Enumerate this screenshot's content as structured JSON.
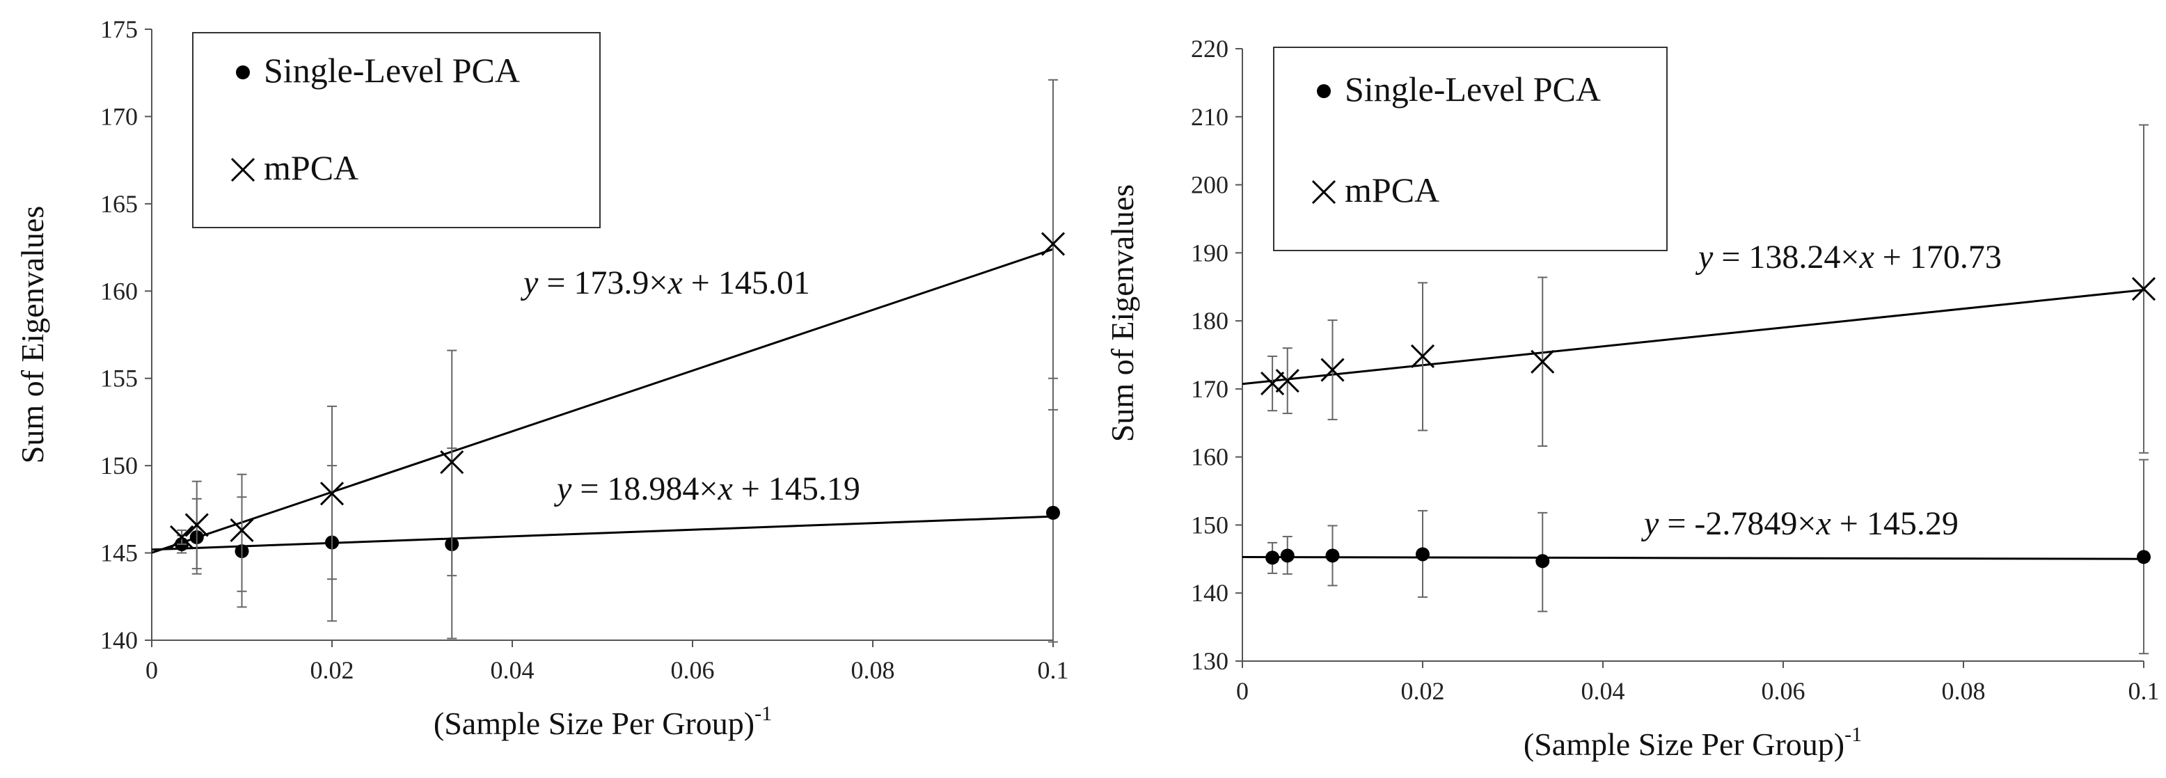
{
  "chart_data": [
    {
      "type": "scatter",
      "title": "",
      "xlabel": "(Sample Size Per Group)",
      "xlabel_superscript": "-1",
      "ylabel": "Sum of Eigenvalues",
      "xlim": [
        0,
        0.1
      ],
      "ylim": [
        140,
        175
      ],
      "xticks": [
        0,
        0.02,
        0.04,
        0.06,
        0.08,
        0.1
      ],
      "xtick_labels": [
        "0",
        "0.02",
        "0.04",
        "0.06",
        "0.08",
        "0.1"
      ],
      "yticks": [
        140,
        145,
        150,
        155,
        160,
        165,
        170,
        175
      ],
      "legend": {
        "position": "top-left",
        "entries": [
          "Single-Level PCA",
          "mPCA"
        ]
      },
      "series": [
        {
          "name": "Single-Level PCA",
          "marker": "circle",
          "x": [
            0.00333,
            0.005,
            0.01,
            0.02,
            0.0333,
            0.1
          ],
          "y": [
            145.5,
            145.9,
            145.1,
            145.6,
            145.5,
            147.3
          ],
          "err_low": [
            145.0,
            143.8,
            141.9,
            141.1,
            140.1,
            139.9
          ],
          "err_high": [
            146.0,
            148.1,
            148.2,
            150.0,
            151.0,
            155.0
          ],
          "fit": {
            "slope": 18.984,
            "intercept": 145.19,
            "equation": {
              "y": "y",
              "op1": " = 18.984×",
              "x": "x",
              "op2": " + 145.19"
            }
          }
        },
        {
          "name": "mPCA",
          "marker": "x",
          "x": [
            0.00333,
            0.005,
            0.01,
            0.02,
            0.0333,
            0.1
          ],
          "y": [
            145.9,
            146.6,
            146.3,
            148.4,
            150.2,
            162.7
          ],
          "err_low": [
            145.5,
            144.1,
            142.8,
            143.5,
            143.7,
            153.2
          ],
          "err_high": [
            146.3,
            149.1,
            149.5,
            153.4,
            156.6,
            172.1
          ],
          "fit": {
            "slope": 173.9,
            "intercept": 145.01,
            "equation": {
              "y": "y",
              "op1": " = 173.9×",
              "x": "x",
              "op2": " + 145.01"
            }
          }
        }
      ]
    },
    {
      "type": "scatter",
      "title": "",
      "xlabel": "(Sample Size Per Group)",
      "xlabel_superscript": "-1",
      "ylabel": "Sum of Eigenvalues",
      "xlim": [
        0,
        0.1
      ],
      "ylim": [
        130,
        220
      ],
      "xticks": [
        0,
        0.02,
        0.04,
        0.06,
        0.08,
        0.1
      ],
      "xtick_labels": [
        "0",
        "0.02",
        "0.04",
        "0.06",
        "0.08",
        "0.1"
      ],
      "yticks": [
        130,
        140,
        150,
        160,
        170,
        180,
        190,
        200,
        210,
        220
      ],
      "legend": {
        "position": "top-left",
        "entries": [
          "Single-Level PCA",
          "mPCA"
        ]
      },
      "series": [
        {
          "name": "Single-Level PCA",
          "marker": "circle",
          "x": [
            0.00333,
            0.005,
            0.01,
            0.02,
            0.0333,
            0.1
          ],
          "y": [
            145.2,
            145.5,
            145.5,
            145.7,
            144.7,
            145.3
          ],
          "err_low": [
            142.9,
            142.8,
            141.1,
            139.4,
            137.3,
            131.1
          ],
          "err_high": [
            147.4,
            148.3,
            149.9,
            152.1,
            151.8,
            159.6
          ],
          "fit": {
            "slope": -2.7849,
            "intercept": 145.29,
            "equation": {
              "y": "y",
              "op1": " = -2.7849×",
              "x": "x",
              "op2": " + 145.29"
            }
          }
        },
        {
          "name": "mPCA",
          "marker": "x",
          "x": [
            0.00333,
            0.005,
            0.01,
            0.02,
            0.0333,
            0.1
          ],
          "y": [
            170.8,
            171.2,
            172.8,
            174.8,
            174.0,
            184.7
          ],
          "err_low": [
            166.8,
            166.4,
            165.5,
            163.9,
            161.6,
            160.6
          ],
          "err_high": [
            174.8,
            176.0,
            180.1,
            185.6,
            186.4,
            208.8
          ],
          "fit": {
            "slope": 138.24,
            "intercept": 170.73,
            "equation": {
              "y": "y",
              "op1": " = 138.24×",
              "x": "x",
              "op2": " + 170.73"
            }
          }
        }
      ]
    }
  ]
}
